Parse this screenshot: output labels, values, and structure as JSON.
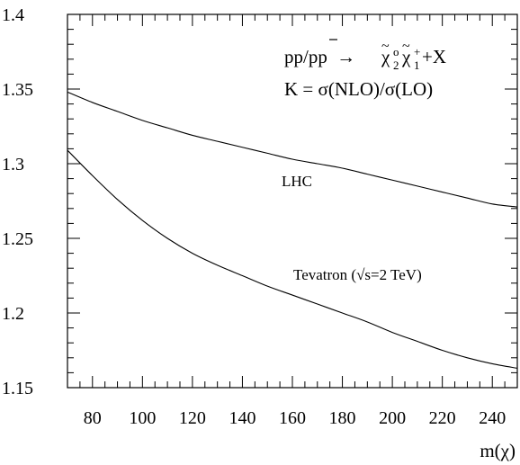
{
  "chart_data": {
    "type": "line",
    "title": "",
    "xlabel": "m(χ)",
    "ylabel": "",
    "xlim": [
      70,
      250
    ],
    "ylim": [
      1.15,
      1.4
    ],
    "x_ticks": [
      80,
      100,
      120,
      140,
      160,
      180,
      200,
      220,
      240
    ],
    "y_ticks": [
      1.15,
      1.2,
      1.25,
      1.3,
      1.35,
      1.4
    ],
    "x_tick_labels": [
      "80",
      "100",
      "120",
      "140",
      "160",
      "180",
      "200",
      "220",
      "240"
    ],
    "y_tick_labels": [
      "1.15",
      "1.2",
      "1.25",
      "1.3",
      "1.35",
      "1.4"
    ],
    "grid": false,
    "annotations": {
      "process_label": "pp/pp → χ̃₂⁰χ̃₁⁺+X",
      "process_main": "pp/pp",
      "process_arrow": "→",
      "process_tail": "+X",
      "ratio_label": "K = σ(NLO)/σ(LO)"
    },
    "series": [
      {
        "name": "LHC",
        "x": [
          70,
          80,
          90,
          100,
          110,
          120,
          130,
          140,
          150,
          160,
          170,
          180,
          190,
          200,
          210,
          220,
          230,
          240,
          250
        ],
        "y": [
          1.348,
          1.341,
          1.335,
          1.329,
          1.324,
          1.319,
          1.315,
          1.311,
          1.307,
          1.303,
          1.3,
          1.297,
          1.293,
          1.289,
          1.285,
          1.281,
          1.277,
          1.273,
          1.271
        ]
      },
      {
        "name": "Tevatron (√s=2 TeV)",
        "x": [
          70,
          80,
          90,
          100,
          110,
          120,
          130,
          140,
          150,
          160,
          170,
          180,
          190,
          200,
          210,
          220,
          230,
          240,
          250
        ],
        "y": [
          1.309,
          1.292,
          1.276,
          1.262,
          1.25,
          1.24,
          1.232,
          1.225,
          1.218,
          1.212,
          1.206,
          1.2,
          1.194,
          1.187,
          1.181,
          1.175,
          1.17,
          1.166,
          1.163
        ]
      }
    ]
  }
}
